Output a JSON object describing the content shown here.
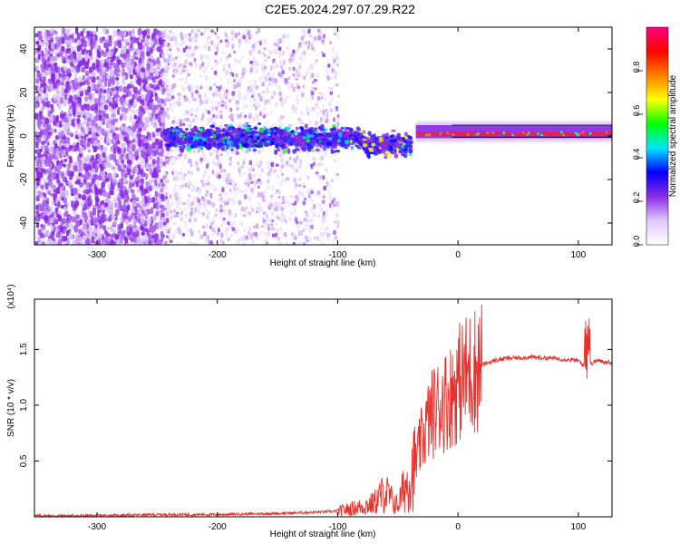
{
  "title": "C2E5.2024.297.07.29.R22",
  "colors": {
    "snr_line": "#e8302c",
    "axis": "#000000"
  },
  "chart_data": [
    {
      "type": "heatmap",
      "xlabel": "Height of straight line (km)",
      "ylabel": "Frequency (Hz)",
      "xlim": [
        -352,
        128
      ],
      "ylim": [
        -50,
        50
      ],
      "x_ticks": [
        -300,
        -200,
        -100,
        0,
        100
      ],
      "y_ticks": [
        -40,
        -20,
        0,
        20,
        40
      ],
      "colorbar": {
        "label": "Normalized spectral amplitude",
        "range": [
          0,
          1
        ],
        "ticks": [
          "0.0",
          "0.2",
          "0.4",
          "0.6",
          "0.8"
        ],
        "colormap": [
          "#ffffff",
          "#e0c8ff",
          "#8a2be2",
          "#0000ff",
          "#00e5ff",
          "#00ff00",
          "#ffff00",
          "#ff8000",
          "#ff0000",
          "#ff0080"
        ]
      },
      "features": [
        {
          "x_range": [
            -352,
            -245
          ],
          "frequency_range": [
            -50,
            50
          ],
          "amplitude": 0.15
        },
        {
          "x_range": [
            -245,
            -100
          ],
          "frequency_range": [
            -50,
            50
          ],
          "amplitude": 0.05
        },
        {
          "x_range": [
            -245,
            -40
          ],
          "frequency_range": [
            -8,
            6
          ],
          "amplitude": 0.3
        },
        {
          "x_range": [
            -35,
            128
          ],
          "frequency_range": [
            0,
            3
          ],
          "amplitude": 0.85
        }
      ]
    },
    {
      "type": "line",
      "xlabel": "Height of straight line (km)",
      "ylabel": "SNR (10 * v/v)",
      "y_multiplier": "(x10⁴)",
      "xlim": [
        -352,
        128
      ],
      "ylim": [
        0,
        1.95
      ],
      "x_ticks": [
        -300,
        -200,
        -100,
        0,
        100
      ],
      "y_ticks": [
        "0.5",
        "1.0",
        "1.5"
      ],
      "series": [
        {
          "x": [
            -352,
            -300,
            -250,
            -200,
            -150,
            -120,
            -100,
            -90,
            -80,
            -70,
            -65,
            -60,
            -55,
            -50,
            -45,
            -40,
            -35,
            -30,
            -25,
            -20,
            -15,
            -10,
            -5,
            0,
            10,
            20,
            30,
            40,
            60,
            80,
            100,
            105,
            108,
            110,
            115,
            128
          ],
          "y": [
            0.01,
            0.01,
            0.02,
            0.02,
            0.03,
            0.04,
            0.05,
            0.07,
            0.09,
            0.12,
            0.18,
            0.22,
            0.15,
            0.1,
            0.25,
            0.35,
            0.48,
            0.7,
            0.85,
            0.95,
            1.0,
            1.05,
            1.1,
            1.2,
            1.3,
            1.36,
            1.4,
            1.42,
            1.43,
            1.42,
            1.4,
            1.35,
            1.55,
            1.37,
            1.4,
            1.38
          ]
        }
      ]
    }
  ]
}
